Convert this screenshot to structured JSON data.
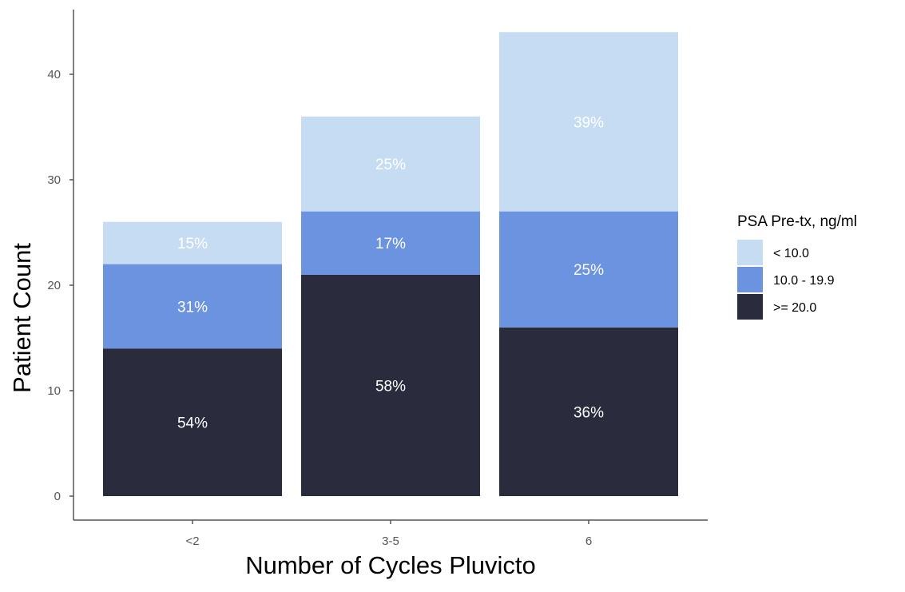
{
  "chart_data": {
    "type": "bar",
    "stacked": true,
    "xlabel": "Number of Cycles Pluvicto",
    "ylabel": "Patient Count",
    "categories": [
      "<2",
      "3-5",
      "6"
    ],
    "ylim": [
      0,
      44
    ],
    "yticks": [
      0,
      10,
      20,
      30,
      40
    ],
    "grid": false,
    "legend": {
      "title": "PSA Pre-tx, ng/ml",
      "position": "right",
      "entries": [
        "< 10.0",
        "10.0 - 19.9",
        ">= 20.0"
      ]
    },
    "series": [
      {
        "name": ">= 20.0",
        "color": "#2a2b3d",
        "values": [
          14,
          21,
          16
        ],
        "labels": [
          "54%",
          "58%",
          "36%"
        ]
      },
      {
        "name": "10.0 - 19.9",
        "color": "#6b93e0",
        "values": [
          8,
          6,
          11
        ],
        "labels": [
          "31%",
          "17%",
          "25%"
        ]
      },
      {
        "name": "< 10.0",
        "color": "#c6dcf3",
        "values": [
          4,
          9,
          17
        ],
        "labels": [
          "15%",
          "25%",
          "39%"
        ]
      }
    ]
  }
}
